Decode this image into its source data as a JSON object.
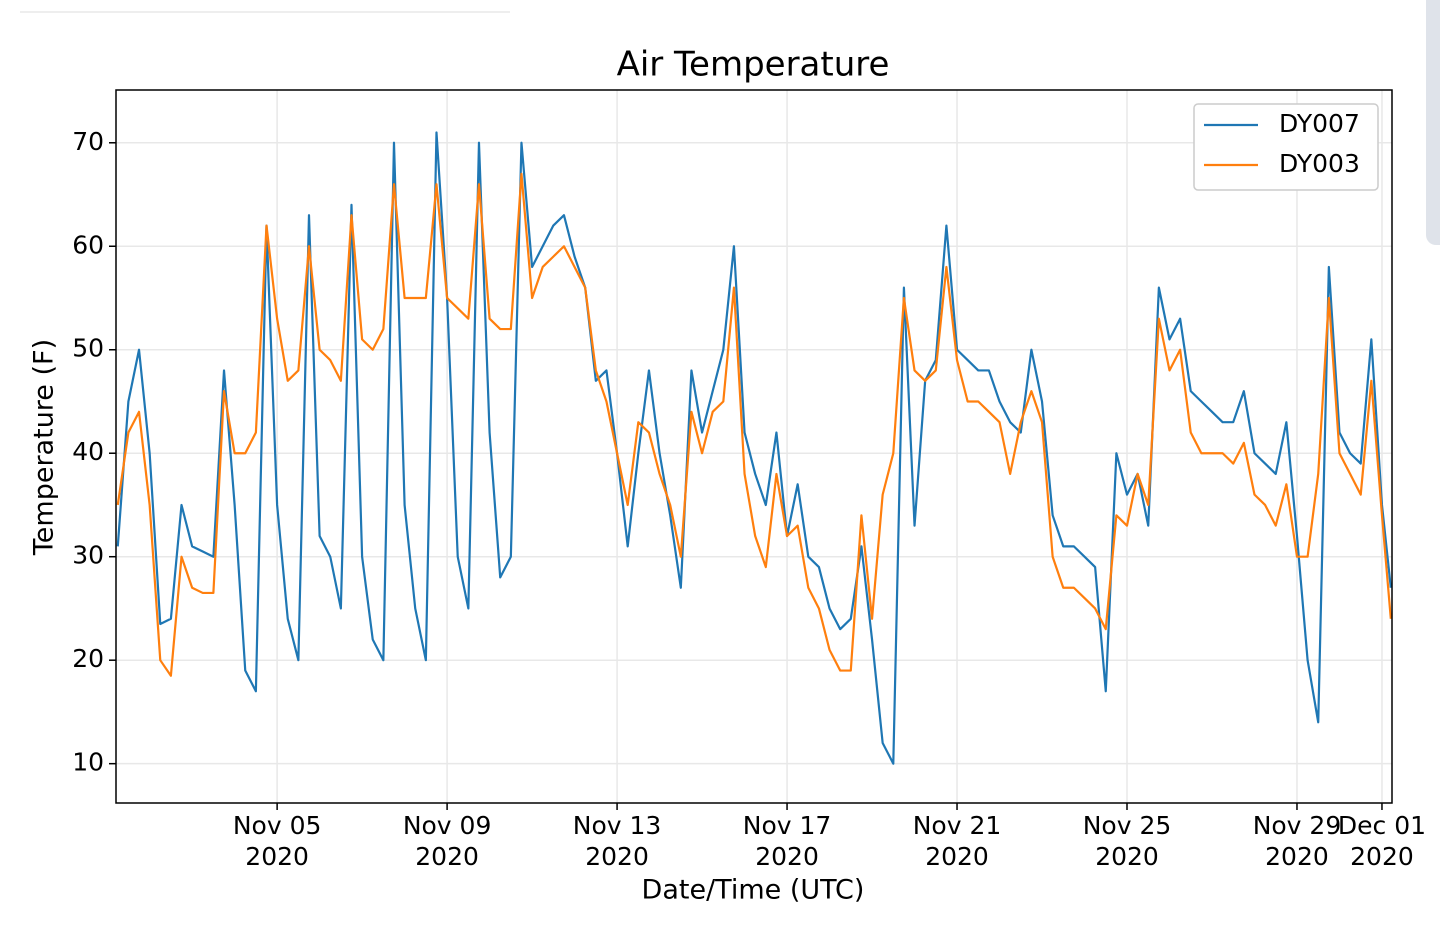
{
  "chart_data": {
    "type": "line",
    "title": "Air Temperature",
    "x_label": "Date/Time (UTC)",
    "y_label": "Temperature (F)",
    "legend": "upper right",
    "grid": true,
    "xlim": [
      "2020-11-01 05:00",
      "2020-12-01 05:40"
    ],
    "xticks": [
      {
        "value": "2020-11-05 00:00",
        "label": "Nov 05\n2020"
      },
      {
        "value": "2020-11-09 00:00",
        "label": "Nov 09\n2020"
      },
      {
        "value": "2020-11-13 00:00",
        "label": "Nov 13\n2020"
      },
      {
        "value": "2020-11-17 00:00",
        "label": "Nov 17\n2020"
      },
      {
        "value": "2020-11-21 00:00",
        "label": "Nov 21\n2020"
      },
      {
        "value": "2020-11-25 00:00",
        "label": "Nov 25\n2020"
      },
      {
        "value": "2020-11-29 00:00",
        "label": "Nov 29\n2020"
      },
      {
        "value": "2020-12-01 00:00",
        "label": "Dec 01\n2020"
      }
    ],
    "ylim": [
      6.2,
      75.1
    ],
    "yticks": [
      10,
      20,
      30,
      40,
      50,
      60,
      70
    ],
    "x": [
      "2020-11-01 06:00",
      "2020-11-01 12:00",
      "2020-11-01 18:00",
      "2020-11-02 00:00",
      "2020-11-02 06:00",
      "2020-11-02 12:00",
      "2020-11-02 18:00",
      "2020-11-03 00:00",
      "2020-11-03 06:00",
      "2020-11-03 12:00",
      "2020-11-03 18:00",
      "2020-11-04 00:00",
      "2020-11-04 06:00",
      "2020-11-04 12:00",
      "2020-11-04 18:00",
      "2020-11-05 00:00",
      "2020-11-05 06:00",
      "2020-11-05 12:00",
      "2020-11-05 18:00",
      "2020-11-06 00:00",
      "2020-11-06 06:00",
      "2020-11-06 12:00",
      "2020-11-06 18:00",
      "2020-11-07 00:00",
      "2020-11-07 06:00",
      "2020-11-07 12:00",
      "2020-11-07 18:00",
      "2020-11-08 00:00",
      "2020-11-08 06:00",
      "2020-11-08 12:00",
      "2020-11-08 18:00",
      "2020-11-09 00:00",
      "2020-11-09 06:00",
      "2020-11-09 12:00",
      "2020-11-09 18:00",
      "2020-11-10 00:00",
      "2020-11-10 06:00",
      "2020-11-10 12:00",
      "2020-11-10 18:00",
      "2020-11-11 00:00",
      "2020-11-11 06:00",
      "2020-11-11 12:00",
      "2020-11-11 18:00",
      "2020-11-12 00:00",
      "2020-11-12 06:00",
      "2020-11-12 12:00",
      "2020-11-12 18:00",
      "2020-11-13 00:00",
      "2020-11-13 06:00",
      "2020-11-13 12:00",
      "2020-11-13 18:00",
      "2020-11-14 00:00",
      "2020-11-14 06:00",
      "2020-11-14 12:00",
      "2020-11-14 18:00",
      "2020-11-15 00:00",
      "2020-11-15 06:00",
      "2020-11-15 12:00",
      "2020-11-15 18:00",
      "2020-11-16 00:00",
      "2020-11-16 06:00",
      "2020-11-16 12:00",
      "2020-11-16 18:00",
      "2020-11-17 00:00",
      "2020-11-17 06:00",
      "2020-11-17 12:00",
      "2020-11-17 18:00",
      "2020-11-18 00:00",
      "2020-11-18 06:00",
      "2020-11-18 12:00",
      "2020-11-18 18:00",
      "2020-11-19 00:00",
      "2020-11-19 06:00",
      "2020-11-19 12:00",
      "2020-11-19 18:00",
      "2020-11-20 00:00",
      "2020-11-20 06:00",
      "2020-11-20 12:00",
      "2020-11-20 18:00",
      "2020-11-21 00:00",
      "2020-11-21 06:00",
      "2020-11-21 12:00",
      "2020-11-21 18:00",
      "2020-11-22 00:00",
      "2020-11-22 06:00",
      "2020-11-22 12:00",
      "2020-11-22 18:00",
      "2020-11-23 00:00",
      "2020-11-23 06:00",
      "2020-11-23 12:00",
      "2020-11-23 18:00",
      "2020-11-24 00:00",
      "2020-11-24 06:00",
      "2020-11-24 12:00",
      "2020-11-24 18:00",
      "2020-11-25 00:00",
      "2020-11-25 06:00",
      "2020-11-25 12:00",
      "2020-11-25 18:00",
      "2020-11-26 00:00",
      "2020-11-26 06:00",
      "2020-11-26 12:00",
      "2020-11-26 18:00",
      "2020-11-27 00:00",
      "2020-11-27 06:00",
      "2020-11-27 12:00",
      "2020-11-27 18:00",
      "2020-11-28 00:00",
      "2020-11-28 06:00",
      "2020-11-28 12:00",
      "2020-11-28 18:00",
      "2020-11-29 00:00",
      "2020-11-29 06:00",
      "2020-11-29 12:00",
      "2020-11-29 18:00",
      "2020-11-30 00:00",
      "2020-11-30 06:00",
      "2020-11-30 12:00",
      "2020-11-30 18:00",
      "2020-12-01 00:00",
      "2020-12-01 05:00"
    ],
    "series": [
      {
        "name": "DY007",
        "color": "#1f77b4",
        "values": [
          31,
          45,
          50,
          40,
          23.5,
          24,
          35,
          31,
          30.5,
          30,
          48,
          35,
          19,
          17,
          62,
          35,
          24,
          20,
          63,
          32,
          30,
          25,
          64,
          30,
          22,
          20,
          70,
          35,
          25,
          20,
          71,
          55,
          30,
          25,
          70,
          42,
          28,
          30,
          70,
          58,
          60,
          62,
          63,
          59,
          56,
          47,
          48,
          40,
          31,
          40,
          48,
          40,
          34,
          27,
          48,
          42,
          46,
          50,
          60,
          42,
          38,
          35,
          42,
          32,
          37,
          30,
          29,
          25,
          23,
          24,
          31,
          22,
          12,
          10,
          56,
          33,
          47,
          49,
          62,
          50,
          49,
          48,
          48,
          45,
          43,
          42,
          50,
          45,
          34,
          31,
          31,
          30,
          29,
          17,
          40,
          36,
          38,
          33,
          56,
          51,
          53,
          46,
          45,
          44,
          43,
          43,
          46,
          40,
          39,
          38,
          43,
          32,
          20,
          14,
          58,
          42,
          40,
          39,
          51,
          35,
          27
        ]
      },
      {
        "name": "DY003",
        "color": "#ff7f0e",
        "values": [
          35,
          42,
          44,
          35,
          20,
          18.5,
          30,
          27,
          26.5,
          26.5,
          46,
          40,
          40,
          42,
          62,
          53,
          47,
          48,
          60,
          50,
          49,
          47,
          63,
          51,
          50,
          52,
          66,
          55,
          55,
          55,
          66,
          55,
          54,
          53,
          66,
          53,
          52,
          52,
          67,
          55,
          58,
          59,
          60,
          58,
          56,
          48,
          45,
          40,
          35,
          43,
          42,
          38,
          35,
          30,
          44,
          40,
          44,
          45,
          56,
          38,
          32,
          29,
          38,
          32,
          33,
          27,
          25,
          21,
          19,
          19,
          34,
          24,
          36,
          40,
          55,
          48,
          47,
          48,
          58,
          49,
          45,
          45,
          44,
          43,
          38,
          43,
          46,
          43,
          30,
          27,
          27,
          26,
          25,
          23,
          34,
          33,
          38,
          35,
          53,
          48,
          50,
          42,
          40,
          40,
          40,
          39,
          41,
          36,
          35,
          33,
          37,
          30,
          30,
          38,
          55,
          40,
          38,
          36,
          47,
          34,
          24
        ]
      }
    ]
  }
}
